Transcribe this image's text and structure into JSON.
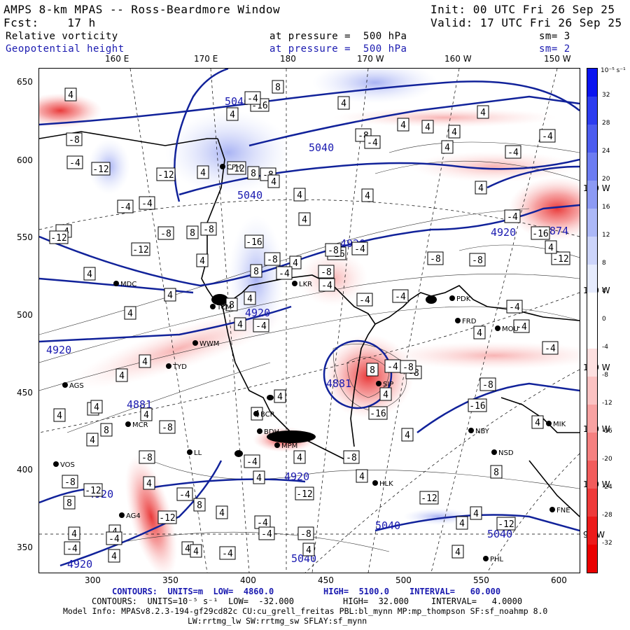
{
  "header": {
    "title": "AMPS 8-km MPAS -- Ross-Beardmore Window",
    "init": "Init: 00 UTC Fri 26 Sep 25",
    "fcst": "Fcst:    17 h",
    "valid": "Valid: 17 UTC Fri 26 Sep 25",
    "field1_name": "Relative vorticity",
    "field1_level": "at pressure =  500 hPa",
    "field1_sm": "sm= 3",
    "field2_name": "Geopotential height",
    "field2_level": "at pressure =  500 hPa",
    "field2_sm": "sm= 2"
  },
  "axes": {
    "top_lon_labels": [
      "160 E",
      "170 E",
      "180",
      "170 W",
      "160 W",
      "150 W"
    ],
    "right_lon_labels": [
      "140 W",
      "130 W",
      "120 W",
      "110 W",
      "100 W",
      "90 W"
    ],
    "y_ticks": [
      "650",
      "600",
      "550",
      "500",
      "450",
      "400",
      "350"
    ],
    "x_ticks": [
      "300",
      "350",
      "400",
      "450",
      "500",
      "550",
      "600"
    ]
  },
  "colorbar": {
    "unit": "10⁻⁵ s⁻¹",
    "labels": [
      "32",
      "28",
      "24",
      "20",
      "16",
      "12",
      "8",
      "4",
      "0",
      "-4",
      "-8",
      "-12",
      "-16",
      "-20",
      "-24",
      "-28",
      "-32"
    ],
    "colors": [
      "#0a14f0",
      "#2c3cf0",
      "#4c5cf0",
      "#6c7cf2",
      "#8c9af4",
      "#acb8f7",
      "#ccd4fa",
      "#e6ebfd",
      "#ffffff",
      "#ffffff",
      "#fde0e0",
      "#fbc2c2",
      "#f8a2a2",
      "#f58080",
      "#f25c5c",
      "#ee3a3a",
      "#ec1a1a",
      "#ea0000"
    ]
  },
  "stations": [
    "CPH",
    "MDC",
    "TCM",
    "WWM",
    "TYD",
    "AGS",
    "MCR",
    "BCR",
    "LL",
    "VOS",
    "AG4",
    "BDH",
    "MPM",
    "HLK",
    "SIP",
    "LKR",
    "PDK",
    "FRD",
    "MOU",
    "NBY",
    "NSD",
    "FNE",
    "MIK",
    "PHL"
  ],
  "height_labels": [
    "5040",
    "5040",
    "5040",
    "5040",
    "5040",
    "5040",
    "4920",
    "4920",
    "4920",
    "4920",
    "4920",
    "4920",
    "4920",
    "4881",
    "4881",
    "4874"
  ],
  "vort_boxes": [
    "-12",
    "4",
    "-4",
    "4",
    "4",
    "4",
    "8",
    "4",
    "8",
    "-8",
    "8",
    "4",
    "-8",
    "-16",
    "-8",
    "-12",
    "-16",
    "-12",
    "8",
    "-4",
    "4",
    "-4",
    "8",
    "-12",
    "4",
    "-8",
    "4",
    "8",
    "-8",
    "4",
    "8",
    "-12",
    "-16",
    "-12",
    "-16",
    "-8",
    "4",
    "4",
    "-4",
    "4",
    "4",
    "-4",
    "4",
    "4",
    "-8",
    "4",
    "-4",
    "4",
    "4",
    "8",
    "4",
    "-4",
    "-4",
    "4",
    "-4",
    "4",
    "4",
    "-8",
    "4",
    "4",
    "8",
    "-4",
    "-8",
    "-8",
    "4",
    "-4",
    "-4",
    "-16",
    "-12",
    "4",
    "-12",
    "-4",
    "-8",
    "-4",
    "-8",
    "4",
    "-12",
    "-8",
    "-8",
    "-4",
    "-4",
    "-4",
    "4",
    "-4",
    "-16",
    "-12",
    "-4",
    "-8",
    "-4",
    "4",
    "4",
    "-4",
    "4",
    "4",
    "4",
    "-4",
    "-8",
    "4",
    "4",
    "4",
    "-8",
    "4",
    "8",
    "4",
    "4",
    "-4",
    "4",
    "-12",
    "-4",
    "4",
    "4",
    "4",
    "4",
    "-4",
    "4",
    "4",
    "4",
    "-8",
    "-4",
    "4"
  ],
  "footer": {
    "line1_a": "CONTOURS:  UNITS=m  LOW=  4860.0",
    "line1_b": "HIGH=  5100.0",
    "line1_c": "INTERVAL=   60.000",
    "line2_a": "CONTOURS:  UNITS=10⁻⁵ s⁻¹  LOW=  -32.000",
    "line2_b": "HIGH=  32.000",
    "line2_c": "INTERVAL=   4.0000",
    "line3": "Model Info: MPASv8.2.3-194-gf29cd82c CU:cu_grell_freitas PBL:bl_mynn MP:mp_thompson SF:sf_noahmp 8.0",
    "line4": "LW:rrtmg_lw SW:rrtmg_sw SFLAY:sf_mynn"
  }
}
